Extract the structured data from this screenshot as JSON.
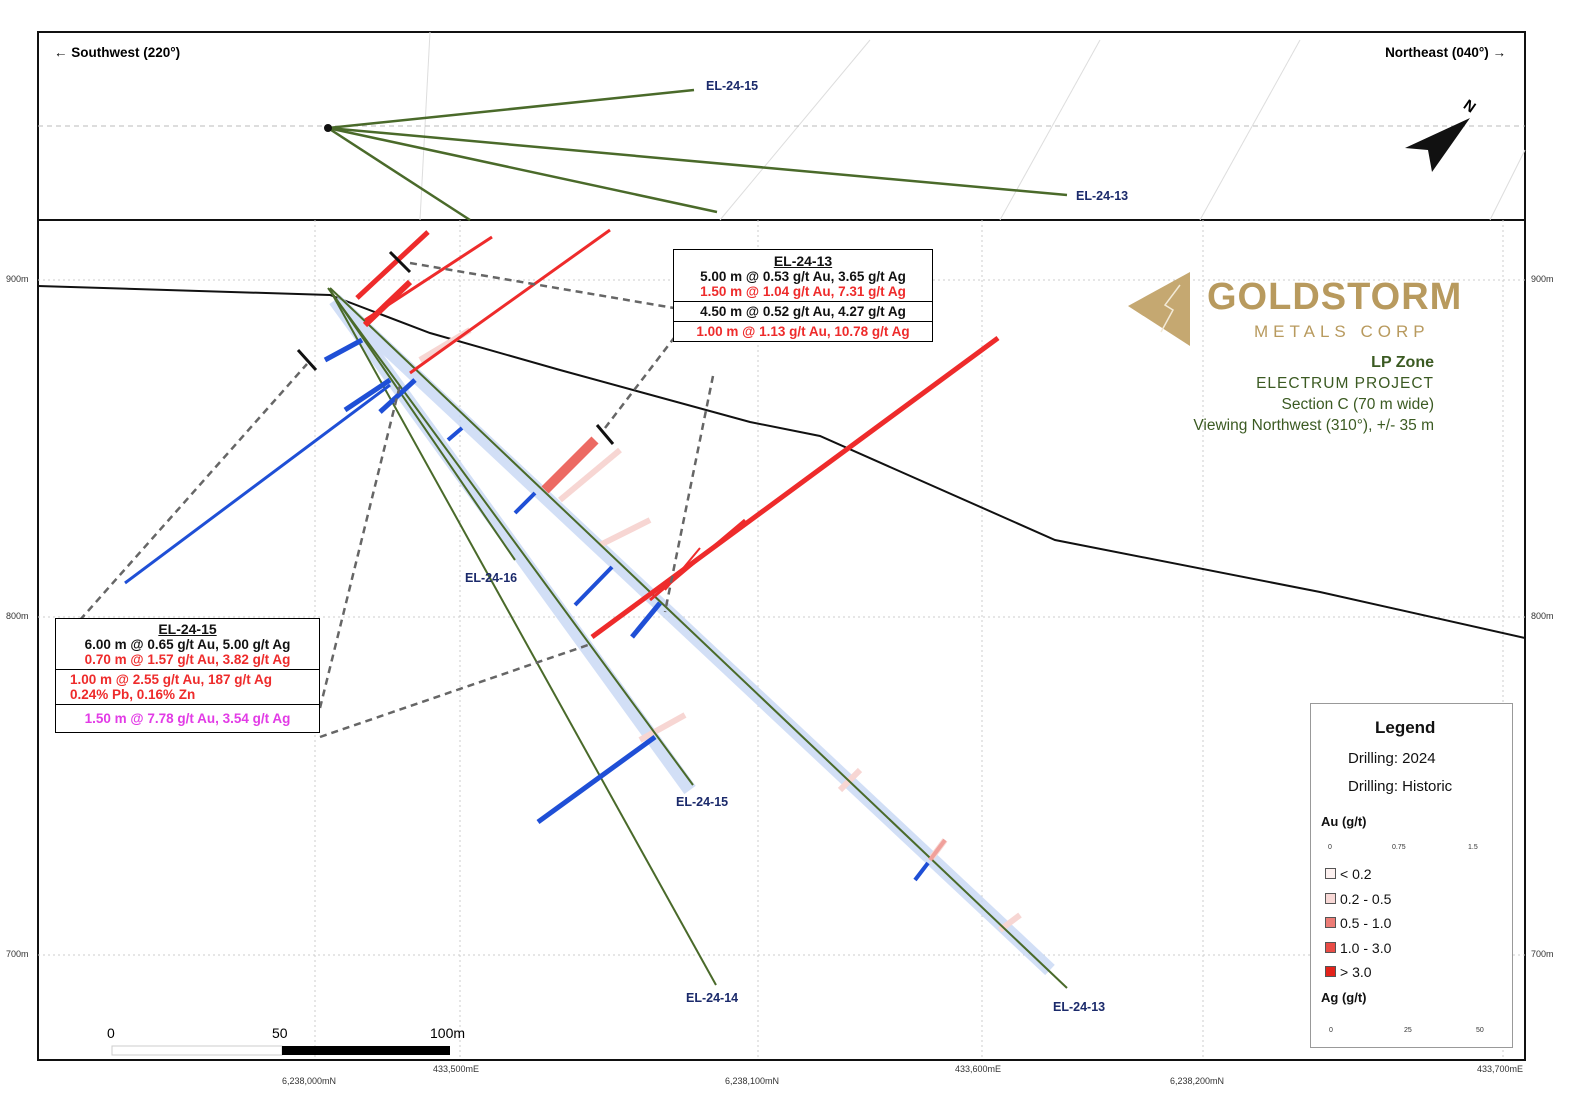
{
  "plan_view": {
    "direction_left": "← Southwest (220°)",
    "direction_right": "Northeast (040°) →",
    "north_arrow_label": "N",
    "hole_labels": [
      "EL-24-15",
      "EL-24-13"
    ]
  },
  "section": {
    "elevation_labels": [
      "900m",
      "800m",
      "700m"
    ],
    "easting_labels": [
      "433,500mE",
      "433,600mE",
      "433,700mE"
    ],
    "northing_labels": [
      "6,238,000mN",
      "6,238,100mN",
      "6,238,200mN"
    ],
    "hole_labels": [
      "EL-24-16",
      "EL-24-15",
      "EL-24-14",
      "EL-24-13"
    ],
    "scale_bar": [
      "0",
      "50",
      "100m"
    ]
  },
  "callout_el_24_13": {
    "title": "EL-24-13",
    "lines": [
      {
        "text": "5.00 m @ 0.53 g/t Au, 3.65 g/t Ag",
        "color": "#111111"
      },
      {
        "text": "1.50 m @ 1.04 g/t Au, 7.31 g/t Ag",
        "color": "#ee2b2b"
      },
      {
        "text": "4.50 m @ 0.52 g/t Au, 4.27 g/t Ag",
        "color": "#111111"
      },
      {
        "text": "1.00 m @ 1.13 g/t Au, 10.78 g/t Ag",
        "color": "#ee2b2b"
      }
    ]
  },
  "callout_el_24_15": {
    "title": "EL-24-15",
    "lines": [
      {
        "text": "6.00 m @ 0.65 g/t Au, 5.00 g/t Ag",
        "color": "#111111"
      },
      {
        "text": "0.70 m @ 1.57 g/t Au, 3.82 g/t Ag",
        "color": "#ee2b2b"
      },
      {
        "text": "1.00 m @ 2.55 g/t Au, 187 g/t Ag",
        "color": "#ee2b2b"
      },
      {
        "text": "0.24% Pb, 0.16% Zn",
        "color": "#ee2b2b"
      },
      {
        "text": "1.50 m @ 7.78 g/t Au, 3.54 g/t Ag",
        "color": "#e23be6"
      }
    ]
  },
  "logo": {
    "name": "GOLDSTORM",
    "sub": "METALS CORP",
    "color": "#b89a5e"
  },
  "info": {
    "zone": "LP Zone",
    "project": "ELECTRUM PROJECT",
    "section": "Section C (70 m wide)",
    "view": "Viewing Northwest (310°), +/- 35 m"
  },
  "legend": {
    "title": "Legend",
    "drilling_2024": "Drilling: 2024",
    "drilling_historic": "Drilling: Historic",
    "au_title": "Au (g/t)",
    "au_scale": [
      "0",
      "0.75",
      "1.5"
    ],
    "au_classes": [
      {
        "label": "< 0.2",
        "color": "#fdf1f0"
      },
      {
        "label": "0.2 - 0.5",
        "color": "#f8d8d6"
      },
      {
        "label": "0.5 - 1.0",
        "color": "#ec7c76"
      },
      {
        "label": "1.0 - 3.0",
        "color": "#e94c46"
      },
      {
        "label": "> 3.0",
        "color": "#e3231b"
      }
    ],
    "ag_title": "Ag (g/t)",
    "ag_scale": [
      "0",
      "25",
      "50"
    ]
  },
  "colors": {
    "drillhole": "#4a6a2a",
    "au": "#ee2b2b",
    "ag": "#1f4fd6",
    "hole_label": "#1b2a6b",
    "info_text": "#3b5a22"
  }
}
